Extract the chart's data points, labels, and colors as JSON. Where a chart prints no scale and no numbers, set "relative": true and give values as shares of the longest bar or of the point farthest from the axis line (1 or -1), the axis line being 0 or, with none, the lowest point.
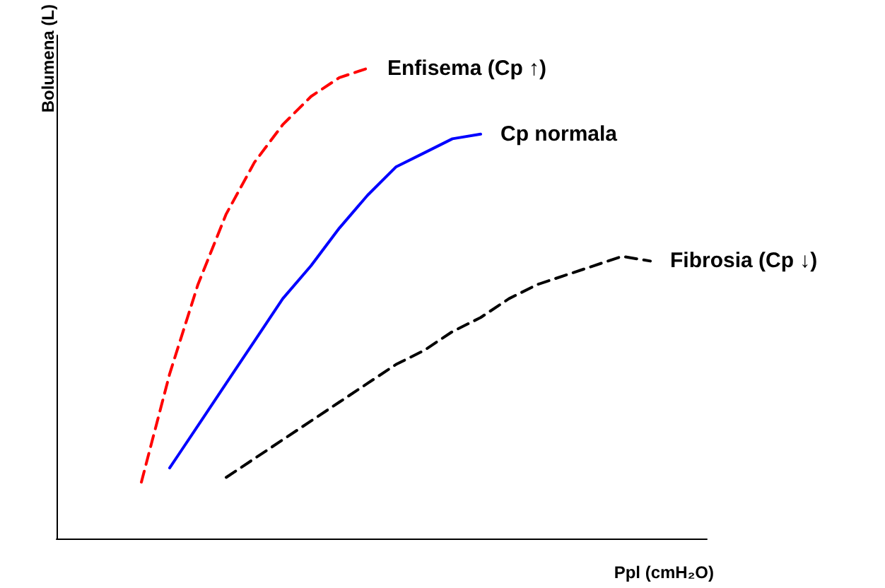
{
  "chart_data": {
    "type": "line",
    "relative": true,
    "xlabel": "Ppl (cmH₂O)",
    "ylabel": "Bolumena (L)",
    "grid": false,
    "legend": false,
    "categories": [
      null,
      null,
      null,
      null,
      null,
      null,
      null,
      null,
      null,
      null,
      null,
      null,
      null,
      null,
      null,
      null,
      null,
      null,
      null,
      null,
      null,
      null,
      null,
      null
    ],
    "series": [
      {
        "name": "Enfisema (Cp ↑)",
        "color": "#ff0000",
        "line_style": "dashed",
        "values": [
          null,
          null,
          null,
          0.12,
          0.35,
          0.54,
          0.69,
          0.8,
          0.88,
          0.94,
          0.98,
          1,
          null,
          null,
          null,
          null,
          null,
          null,
          null,
          null,
          null,
          null,
          null,
          null
        ]
      },
      {
        "name": "Cp normala",
        "color": "#0000ff",
        "line_style": "solid",
        "values": [
          null,
          null,
          null,
          null,
          0.15,
          0.24,
          0.33,
          0.42,
          0.51,
          0.58,
          0.66,
          0.73,
          0.79,
          0.82,
          0.85,
          0.86,
          null,
          null,
          null,
          null,
          null,
          null,
          null,
          null
        ]
      },
      {
        "name": "Fibrosia (Cp ↓)",
        "color": "#000000",
        "line_style": "dashed",
        "values": [
          null,
          null,
          null,
          null,
          null,
          null,
          0.13,
          0.17,
          0.21,
          0.25,
          0.29,
          0.33,
          0.37,
          0.4,
          0.44,
          0.47,
          0.51,
          0.54,
          0.56,
          0.58,
          0.6,
          0.59,
          null,
          null
        ]
      }
    ]
  }
}
